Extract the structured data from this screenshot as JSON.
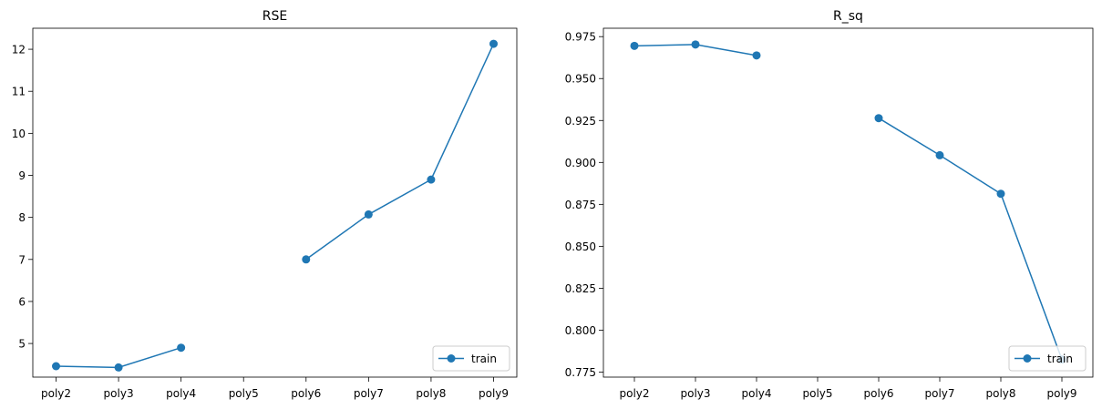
{
  "chart_data": [
    {
      "type": "line",
      "title": "RSE",
      "xlabel": "",
      "ylabel": "",
      "categories": [
        "poly2",
        "poly3",
        "poly4",
        "poly5",
        "poly6",
        "poly7",
        "poly8",
        "poly9"
      ],
      "series": [
        {
          "name": "train",
          "values": [
            4.46,
            4.43,
            4.9,
            null,
            7.0,
            8.07,
            8.9,
            12.13
          ]
        }
      ],
      "ylim": [
        4.2,
        12.5
      ],
      "yticks": [
        5,
        6,
        7,
        8,
        9,
        10,
        11,
        12
      ],
      "grid": false,
      "legend": "lower right",
      "color": "#1f77b4"
    },
    {
      "type": "line",
      "title": "R_sq",
      "xlabel": "",
      "ylabel": "",
      "categories": [
        "poly2",
        "poly3",
        "poly4",
        "poly5",
        "poly6",
        "poly7",
        "poly8",
        "poly9"
      ],
      "series": [
        {
          "name": "train",
          "values": [
            0.9695,
            0.9703,
            0.9638,
            null,
            0.9264,
            0.9043,
            0.8813,
            0.7825
          ]
        }
      ],
      "ylim": [
        0.772,
        0.98
      ],
      "yticks": [
        0.775,
        0.8,
        0.825,
        0.85,
        0.875,
        0.9,
        0.925,
        0.95,
        0.975
      ],
      "tick_format": 3,
      "grid": false,
      "legend": "lower right",
      "color": "#1f77b4"
    }
  ]
}
